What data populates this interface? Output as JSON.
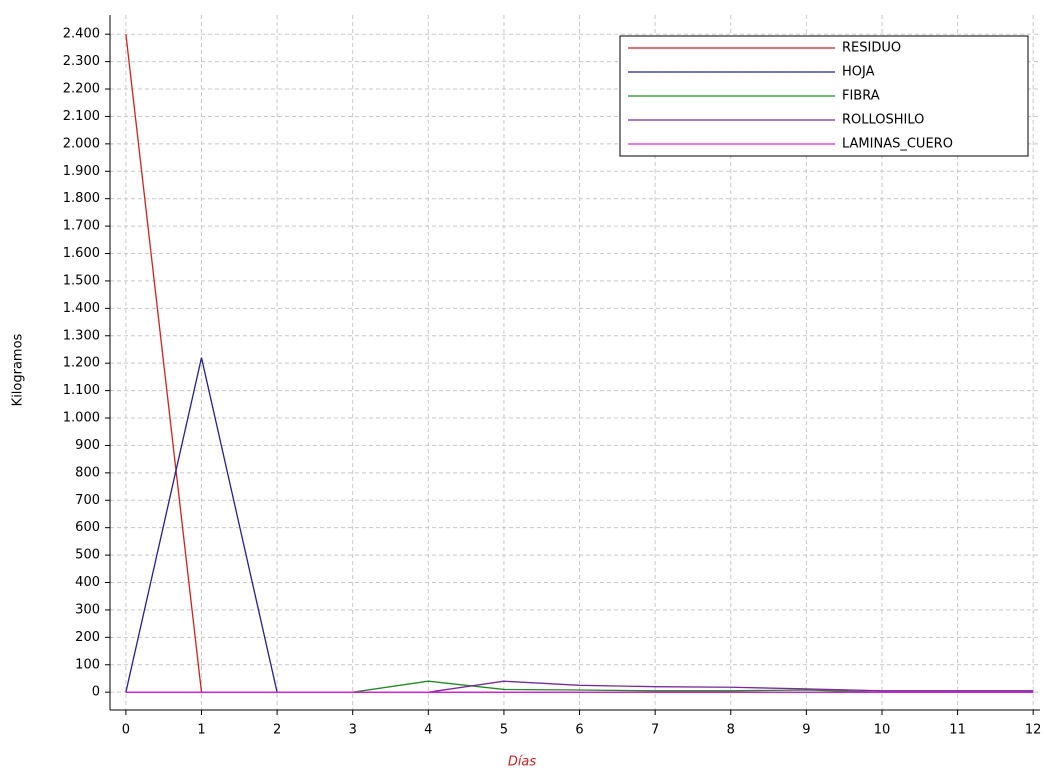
{
  "chart_data": {
    "type": "line",
    "x_label": "Días",
    "y_label": "Kilogramos",
    "x": [
      0,
      1,
      2,
      3,
      4,
      5,
      6,
      7,
      8,
      9,
      10,
      11,
      12
    ],
    "series": [
      {
        "name": "RESIDUO",
        "color": "#cc2222",
        "values": [
          2400,
          0,
          0,
          0,
          0,
          0,
          0,
          0,
          0,
          0,
          0,
          0,
          0
        ]
      },
      {
        "name": "HOJA",
        "color": "#22228a",
        "values": [
          0,
          1220,
          0,
          0,
          0,
          0,
          0,
          0,
          0,
          0,
          0,
          0,
          0
        ]
      },
      {
        "name": "FIBRA",
        "color": "#228a22",
        "values": [
          0,
          0,
          0,
          0,
          40,
          10,
          8,
          5,
          5,
          8,
          0,
          0,
          0
        ]
      },
      {
        "name": "ROLLOSHILO",
        "color": "#7a2a9a",
        "values": [
          0,
          0,
          0,
          0,
          0,
          40,
          25,
          20,
          18,
          12,
          5,
          5,
          5
        ]
      },
      {
        "name": "LAMINAS_CUERO",
        "color": "#e020e0",
        "values": [
          0,
          0,
          0,
          0,
          0,
          0,
          0,
          0,
          0,
          0,
          0,
          0,
          0
        ]
      }
    ],
    "xlim": [
      -0.21,
      12.09
    ],
    "ylim": [
      -65,
      2470
    ],
    "xticks": [
      0,
      1,
      2,
      3,
      4,
      5,
      6,
      7,
      8,
      9,
      10,
      11,
      12
    ],
    "yticks": [
      0,
      100,
      200,
      300,
      400,
      500,
      600,
      700,
      800,
      900,
      {
        "value": 1000,
        "label": "1.000"
      },
      {
        "value": 1100,
        "label": "1.100"
      },
      {
        "value": 1200,
        "label": "1.200"
      },
      {
        "value": 1300,
        "label": "1.300"
      },
      {
        "value": 1400,
        "label": "1.400"
      },
      {
        "value": 1500,
        "label": "1.500"
      },
      {
        "value": 1600,
        "label": "1.600"
      },
      {
        "value": 1700,
        "label": "1.700"
      },
      {
        "value": 1800,
        "label": "1.800"
      },
      {
        "value": 1900,
        "label": "1.900"
      },
      {
        "value": 2000,
        "label": "2.000"
      },
      {
        "value": 2100,
        "label": "2.100"
      },
      {
        "value": 2200,
        "label": "2.200"
      },
      {
        "value": 2300,
        "label": "2.300"
      },
      {
        "value": 2400,
        "label": "2.400"
      }
    ],
    "grid": true,
    "legend": "upper right"
  }
}
